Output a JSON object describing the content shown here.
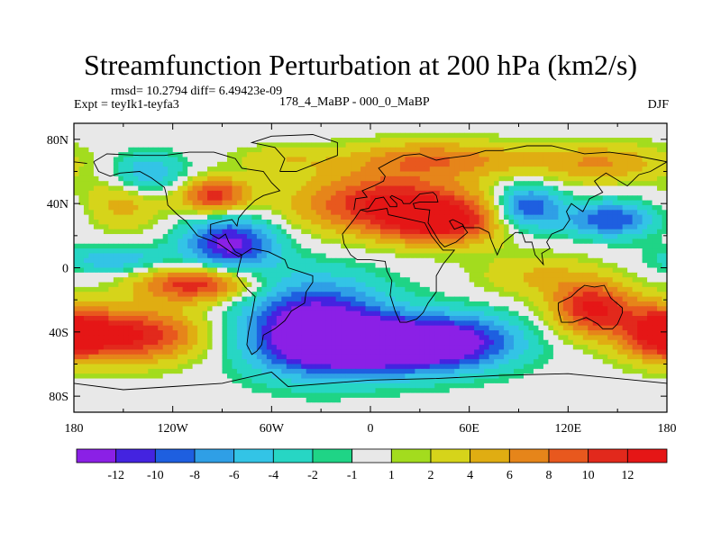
{
  "chart_data": {
    "type": "heatmap",
    "title": "Streamfunction Perturbation at 200 hPa (km2/s)",
    "stats": "rmsd= 10.2794 diff= 6.49423e-09",
    "experiment": "Expt = teyIk1-teyfa3",
    "comparison": "178_4_MaBP - 000_0_MaBP",
    "season": "DJF",
    "x_ticks": [
      "180",
      "120W",
      "60W",
      "0",
      "60E",
      "120E",
      "180"
    ],
    "x_tick_values": [
      -180,
      -120,
      -60,
      0,
      60,
      120,
      180
    ],
    "y_ticks": [
      "80N",
      "40N",
      "0",
      "40S",
      "80S"
    ],
    "y_tick_values": [
      80,
      40,
      0,
      -40,
      -80
    ],
    "xlim": [
      -180,
      180
    ],
    "ylim": [
      -90,
      90
    ],
    "colorbar": {
      "labels": [
        "-12",
        "-10",
        "-8",
        "-6",
        "-4",
        "-2",
        "-1",
        "1",
        "2",
        "4",
        "6",
        "8",
        "10",
        "12"
      ],
      "colors": [
        "#8b20e6",
        "#4423e0",
        "#1e5fe0",
        "#2f9fe6",
        "#33c4e6",
        "#27d6c4",
        "#1fd486",
        "#e8e8e8",
        "#a3dc1e",
        "#d6d41a",
        "#e0ad12",
        "#e6851a",
        "#e8581e",
        "#e2291c",
        "#e51616"
      ]
    },
    "features": [
      {
        "x": -35,
        "y": -35,
        "value": -14,
        "sx": 32,
        "sy": 20
      },
      {
        "x": 5,
        "y": -50,
        "value": -13,
        "sx": 40,
        "sy": 12
      },
      {
        "x": 50,
        "y": -45,
        "value": -10,
        "sx": 30,
        "sy": 12
      },
      {
        "x": -85,
        "y": 15,
        "value": -13,
        "sx": 20,
        "sy": 12
      },
      {
        "x": 95,
        "y": 38,
        "value": -11,
        "sx": 14,
        "sy": 10
      },
      {
        "x": 145,
        "y": 30,
        "value": -10,
        "sx": 20,
        "sy": 8
      },
      {
        "x": -135,
        "y": 58,
        "value": -7,
        "sx": 16,
        "sy": 9
      },
      {
        "x": -155,
        "y": 5,
        "value": -6,
        "sx": 22,
        "sy": 6
      },
      {
        "x": 10,
        "y": 40,
        "value": 12,
        "sx": 40,
        "sy": 14
      },
      {
        "x": 45,
        "y": 28,
        "value": 10,
        "sx": 25,
        "sy": 10
      },
      {
        "x": -150,
        "y": -42,
        "value": 13,
        "sx": 35,
        "sy": 12
      },
      {
        "x": -105,
        "y": -10,
        "value": 12,
        "sx": 25,
        "sy": 8
      },
      {
        "x": -95,
        "y": 45,
        "value": 11,
        "sx": 15,
        "sy": 8
      },
      {
        "x": 135,
        "y": -25,
        "value": 12,
        "sx": 18,
        "sy": 12
      },
      {
        "x": 175,
        "y": -40,
        "value": 8,
        "sx": 15,
        "sy": 12
      },
      {
        "x": 40,
        "y": 68,
        "value": 7,
        "sx": 40,
        "sy": 8
      },
      {
        "x": 140,
        "y": 65,
        "value": 6,
        "sx": 30,
        "sy": 9
      },
      {
        "x": -55,
        "y": 68,
        "value": 3,
        "sx": 20,
        "sy": 6
      },
      {
        "x": 100,
        "y": -5,
        "value": 4,
        "sx": 25,
        "sy": 10
      },
      {
        "x": -150,
        "y": 40,
        "value": 5,
        "sx": 18,
        "sy": 12
      }
    ]
  }
}
